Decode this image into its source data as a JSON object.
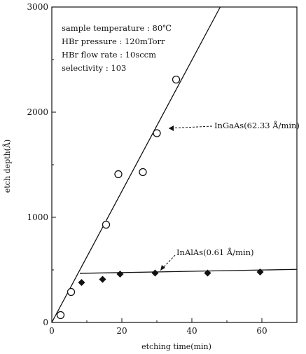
{
  "chart_data": {
    "type": "scatter",
    "xlabel": "etching time(min)",
    "ylabel": "etch depth(Å)",
    "xlim": [
      0,
      70
    ],
    "ylim": [
      0,
      3000
    ],
    "x_ticks": [
      "0",
      "20",
      "40",
      "60"
    ],
    "y_ticks": [
      "0",
      "1000",
      "2000",
      "3000"
    ],
    "grid": false,
    "info_lines": [
      "sample temperature : 80℃",
      "HBr pressure : 120mTorr",
      "HBr flow rate : 10sccm",
      "selectivity : 103"
    ],
    "series": [
      {
        "name": "InGaAs(62.33 Å/min)",
        "marker": "open-circle",
        "x": [
          2.5,
          5.5,
          15.5,
          19,
          26,
          30,
          35.5
        ],
        "y": [
          70,
          290,
          930,
          1410,
          1430,
          1800,
          2310
        ],
        "fit": {
          "x": [
            0,
            48.1
          ],
          "y": [
            0,
            3000
          ]
        }
      },
      {
        "name": "InAlAs(0.61 Å/min)",
        "marker": "filled-diamond",
        "x": [
          8.5,
          14.5,
          19.5,
          29.5,
          44.5,
          59.5
        ],
        "y": [
          380,
          410,
          460,
          470,
          470,
          480
        ],
        "fit": {
          "x": [
            8,
            70
          ],
          "y": [
            467,
            505
          ]
        }
      }
    ],
    "annotations": [
      "InGaAs(62.33 Å/min)",
      "InAlAs(0.61 Å/min)"
    ]
  }
}
